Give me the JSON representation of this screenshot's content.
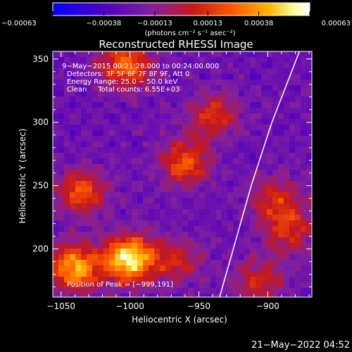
{
  "chart_data": {
    "type": "heatmap",
    "title": "Reconstructed RHESSI Image",
    "xlabel": "Heliocentric X (arcsec)",
    "ylabel": "Heliocentric Y (arcsec)",
    "xlim": [
      -1056,
      -868
    ],
    "ylim": [
      162,
      356
    ],
    "x_ticks": [
      -1050,
      -1000,
      -950,
      -900
    ],
    "x_tick_labels": [
      "−1050",
      "−1000",
      "−950",
      "−900"
    ],
    "y_ticks": [
      200,
      250,
      300,
      350
    ],
    "y_tick_labels": [
      "200",
      "250",
      "300",
      "350"
    ],
    "colorbar": {
      "range": [
        -0.00063,
        0.00063
      ],
      "tick_values": [
        -0.00063,
        -0.00038,
        -0.00013,
        0.00013,
        0.00038,
        0.00063
      ],
      "tick_labels": [
        "−0.00063",
        "−0.00038",
        "−0.00013",
        "0.00013",
        "0.00038",
        "0.00063"
      ],
      "unit_label": "(photons cm⁻² s⁻¹ asec⁻²)",
      "colors": [
        "#0000ff",
        "#5000c0",
        "#8020a0",
        "#c81818",
        "#ff5a00",
        "#ffb400",
        "#ffffa0",
        "#ffffff"
      ]
    },
    "annotations": {
      "time": "9−May−2015 00:21:28.000 to 00:24:00.000",
      "detectors": "Detectors: 3F 5F 6F 7F 8F 9F, Att 0",
      "energy": "Energy Range: 25.0 − 50.0 keV",
      "clean": "Clean     Total counts: 6.55E+03",
      "peak": "Position of Peak = [−999,191]"
    },
    "peak_position": [
      -999,
      191
    ],
    "sources": [
      {
        "x": -1000,
        "y": 192,
        "amp": 1.0
      },
      {
        "x": -1040,
        "y": 185,
        "amp": 0.8
      },
      {
        "x": -1035,
        "y": 245,
        "amp": 0.55
      },
      {
        "x": -1003,
        "y": 345,
        "amp": 0.65
      },
      {
        "x": -960,
        "y": 268,
        "amp": 0.55
      },
      {
        "x": -940,
        "y": 305,
        "amp": 0.45
      },
      {
        "x": -895,
        "y": 240,
        "amp": 0.4
      },
      {
        "x": -885,
        "y": 215,
        "amp": 0.45
      },
      {
        "x": -905,
        "y": 175,
        "amp": 0.4
      },
      {
        "x": -965,
        "y": 190,
        "amp": 0.35
      }
    ],
    "limb": [
      [
        -935,
        162
      ],
      [
        -925,
        200
      ],
      [
        -912,
        250
      ],
      [
        -897,
        300
      ],
      [
        -877,
        356
      ]
    ]
  },
  "footer": {
    "timestamp": "21−May−2022 04:52"
  }
}
